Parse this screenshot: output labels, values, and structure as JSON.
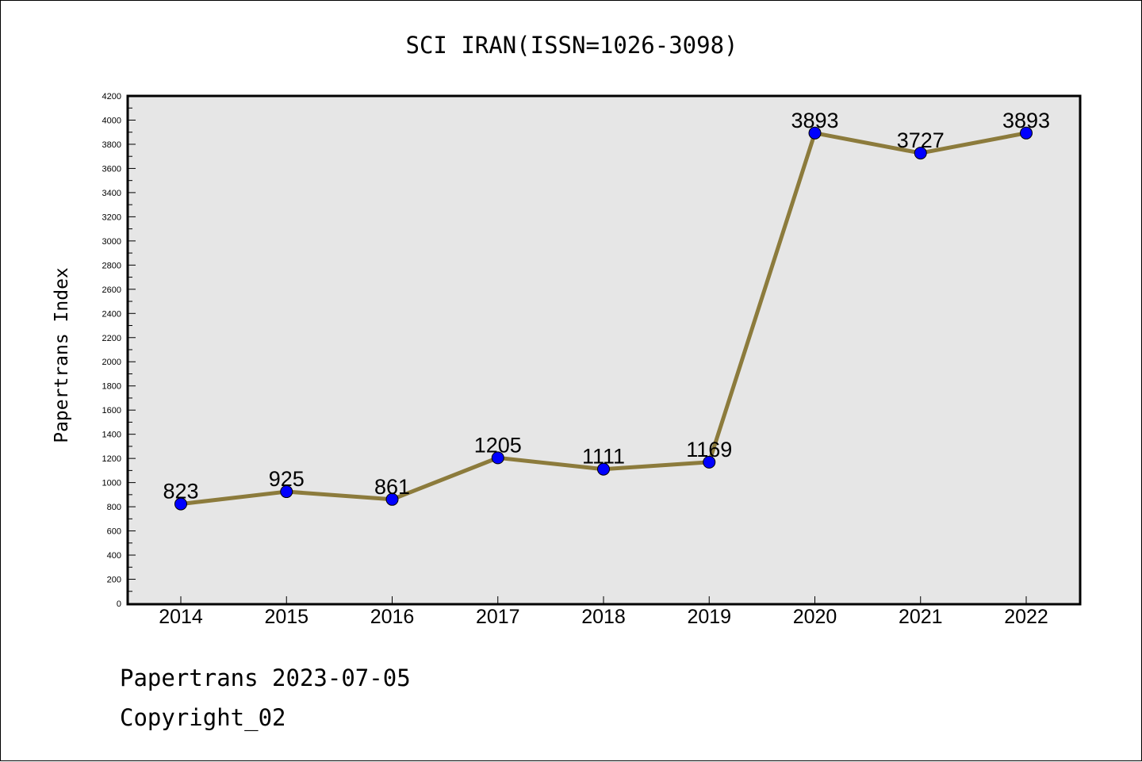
{
  "chart_data": {
    "type": "line",
    "title": "SCI IRAN(ISSN=1026-3098)",
    "xlabel": "",
    "ylabel": "Papertrans Index",
    "categories": [
      "2014",
      "2015",
      "2016",
      "2017",
      "2018",
      "2019",
      "2020",
      "2021",
      "2022"
    ],
    "series": [
      {
        "values": [
          823,
          925,
          861,
          1205,
          1111,
          1169,
          3893,
          3727,
          3893
        ]
      }
    ],
    "ylim": [
      0,
      4200
    ],
    "yticks": [
      0,
      200,
      400,
      600,
      800,
      1000,
      1200,
      1400,
      1600,
      1800,
      2000,
      2200,
      2400,
      2600,
      2800,
      3000,
      3200,
      3400,
      3600,
      3800,
      4000,
      4200
    ],
    "grid": false,
    "legend": "none",
    "colors": {
      "line": "#8c7b3c",
      "marker": "#0000ff",
      "plot_background": "#e6e6e6"
    }
  },
  "footer": {
    "line1": "Papertrans 2023-07-05",
    "line2": "Copyright_02"
  }
}
